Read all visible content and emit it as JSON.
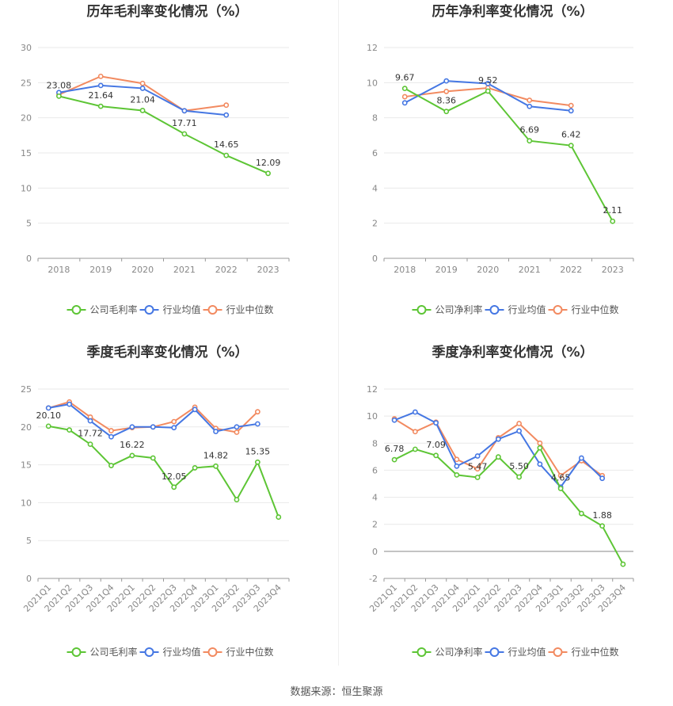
{
  "source_text": "数据来源：恒生聚源",
  "colors": {
    "company": "#5dc535",
    "avg": "#4577e3",
    "median": "#f28a60"
  },
  "chart_data": [
    {
      "type": "line",
      "title": "历年毛利率变化情况（%）",
      "categories": [
        "2018",
        "2019",
        "2020",
        "2021",
        "2022",
        "2023"
      ],
      "ylim": [
        0,
        30
      ],
      "yticks": [
        0,
        5,
        10,
        15,
        20,
        25,
        30
      ],
      "series": [
        {
          "name": "公司毛利率",
          "values": [
            23.08,
            21.64,
            21.04,
            17.71,
            14.65,
            12.09
          ],
          "labels": [
            true,
            true,
            true,
            true,
            true,
            true
          ]
        },
        {
          "name": "行业均值",
          "values": [
            23.6,
            24.6,
            24.2,
            21.0,
            20.4,
            null
          ]
        },
        {
          "name": "行业中位数",
          "values": [
            23.3,
            25.9,
            24.9,
            21.0,
            21.8,
            null
          ]
        }
      ],
      "grid": true,
      "legend": "bottom"
    },
    {
      "type": "line",
      "title": "历年净利率变化情况（%）",
      "categories": [
        "2018",
        "2019",
        "2020",
        "2021",
        "2022",
        "2023"
      ],
      "ylim": [
        0,
        12
      ],
      "yticks": [
        0,
        2,
        4,
        6,
        8,
        10,
        12
      ],
      "series": [
        {
          "name": "公司净利率",
          "values": [
            9.67,
            8.36,
            9.52,
            6.69,
            6.42,
            2.11
          ],
          "labels": [
            true,
            true,
            true,
            true,
            true,
            true
          ]
        },
        {
          "name": "行业均值",
          "values": [
            8.85,
            10.1,
            9.95,
            8.65,
            8.4,
            null
          ]
        },
        {
          "name": "行业中位数",
          "values": [
            9.2,
            9.5,
            9.7,
            9.0,
            8.7,
            null
          ]
        }
      ],
      "grid": true,
      "legend": "bottom"
    },
    {
      "type": "line",
      "title": "季度毛利率变化情况（%）",
      "categories": [
        "2021Q1",
        "2021Q2",
        "2021Q3",
        "2021Q4",
        "2022Q1",
        "2022Q2",
        "2022Q3",
        "2022Q4",
        "2023Q1",
        "2023Q2",
        "2023Q3",
        "2023Q4"
      ],
      "ylim": [
        0,
        25
      ],
      "yticks": [
        0,
        5,
        10,
        15,
        20,
        25
      ],
      "series": [
        {
          "name": "公司毛利率",
          "values": [
            20.1,
            19.6,
            17.72,
            14.9,
            16.22,
            15.9,
            12.05,
            14.6,
            14.82,
            10.4,
            15.35,
            8.1
          ],
          "labels": [
            true,
            false,
            true,
            false,
            true,
            false,
            true,
            false,
            true,
            false,
            true,
            false
          ]
        },
        {
          "name": "行业均值",
          "values": [
            22.5,
            23.0,
            20.8,
            18.7,
            20.0,
            20.0,
            19.9,
            22.3,
            19.4,
            20.0,
            20.4,
            null
          ]
        },
        {
          "name": "行业中位数",
          "values": [
            22.5,
            23.3,
            21.3,
            19.5,
            19.9,
            20.0,
            20.7,
            22.6,
            19.8,
            19.3,
            22.0,
            null
          ]
        }
      ],
      "grid": true,
      "legend": "bottom"
    },
    {
      "type": "line",
      "title": "季度净利率变化情况（%）",
      "categories": [
        "2021Q1",
        "2021Q2",
        "2021Q3",
        "2021Q4",
        "2022Q1",
        "2022Q2",
        "2022Q3",
        "2022Q4",
        "2023Q1",
        "2023Q2",
        "2023Q3",
        "2023Q4"
      ],
      "ylim": [
        -2,
        12
      ],
      "yticks": [
        -2,
        0,
        2,
        4,
        6,
        8,
        10,
        12
      ],
      "series": [
        {
          "name": "公司净利率",
          "values": [
            6.78,
            7.55,
            7.09,
            5.65,
            5.47,
            6.98,
            5.5,
            7.65,
            4.65,
            2.8,
            1.88,
            -0.95
          ],
          "labels": [
            true,
            false,
            true,
            false,
            true,
            false,
            true,
            false,
            true,
            false,
            true,
            false
          ]
        },
        {
          "name": "行业均值",
          "values": [
            9.7,
            10.3,
            9.5,
            6.3,
            7.05,
            8.3,
            8.9,
            6.45,
            4.75,
            6.9,
            5.4,
            null
          ]
        },
        {
          "name": "行业中位数",
          "values": [
            9.8,
            8.85,
            9.55,
            6.8,
            6.1,
            8.4,
            9.45,
            8.0,
            5.6,
            6.7,
            5.6,
            null
          ]
        }
      ],
      "grid": true,
      "legend": "bottom"
    }
  ]
}
